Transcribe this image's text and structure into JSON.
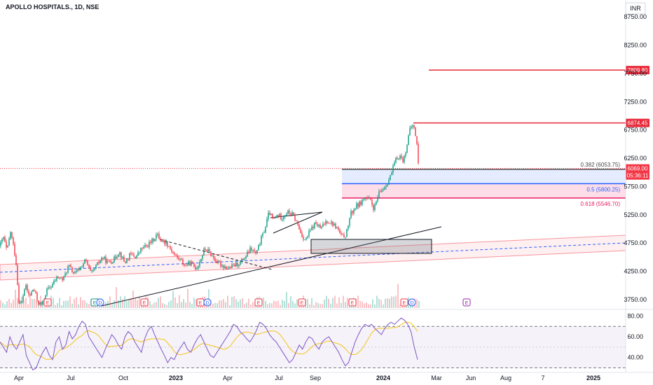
{
  "header": {
    "title": "APOLLO HOSPITALS., 1D, NSE",
    "currency": "INR"
  },
  "chart_data": [
    {
      "type": "line",
      "title": "APOLLO HOSPITALS., 1D, NSE",
      "ylim": [
        3600,
        9050
      ],
      "price_ticks": [
        8750,
        8250,
        7750,
        7250,
        6750,
        6250,
        5750,
        5250,
        4750,
        4250,
        3750
      ],
      "x_ticks": [
        "Apr",
        "Jul",
        "Oct",
        "2023",
        "Apr",
        "Jul",
        "Sep",
        "2024",
        "Mar",
        "Jun",
        "Aug",
        "7",
        "2025"
      ],
      "price_path": [
        [
          0,
          4700
        ],
        [
          5,
          4850
        ],
        [
          10,
          4600
        ],
        [
          15,
          4950
        ],
        [
          20,
          4650
        ],
        [
          24,
          4300
        ],
        [
          26,
          3750
        ],
        [
          30,
          3650
        ],
        [
          36,
          4000
        ],
        [
          42,
          3800
        ],
        [
          48,
          3950
        ],
        [
          54,
          3700
        ],
        [
          60,
          3650
        ],
        [
          66,
          3900
        ],
        [
          74,
          4000
        ],
        [
          82,
          4150
        ],
        [
          90,
          4100
        ],
        [
          98,
          4350
        ],
        [
          106,
          4200
        ],
        [
          114,
          4300
        ],
        [
          122,
          4450
        ],
        [
          130,
          4200
        ],
        [
          138,
          4350
        ],
        [
          146,
          4500
        ],
        [
          154,
          4400
        ],
        [
          162,
          4450
        ],
        [
          170,
          4600
        ],
        [
          178,
          4400
        ],
        [
          186,
          4550
        ],
        [
          194,
          4500
        ],
        [
          202,
          4650
        ],
        [
          210,
          4700
        ],
        [
          218,
          4800
        ],
        [
          224,
          4900
        ],
        [
          230,
          4800
        ],
        [
          238,
          4750
        ],
        [
          246,
          4600
        ],
        [
          252,
          4500
        ],
        [
          258,
          4450
        ],
        [
          264,
          4350
        ],
        [
          272,
          4400
        ],
        [
          280,
          4300
        ],
        [
          286,
          4450
        ],
        [
          292,
          4650
        ],
        [
          298,
          4600
        ],
        [
          304,
          4500
        ],
        [
          310,
          4400
        ],
        [
          318,
          4350
        ],
        [
          326,
          4300
        ],
        [
          334,
          4350
        ],
        [
          342,
          4400
        ],
        [
          350,
          4500
        ],
        [
          358,
          4650
        ],
        [
          366,
          4550
        ],
        [
          372,
          4800
        ],
        [
          378,
          5000
        ],
        [
          384,
          5300
        ],
        [
          390,
          5150
        ],
        [
          396,
          5250
        ],
        [
          402,
          5200
        ],
        [
          410,
          5300
        ],
        [
          418,
          5250
        ],
        [
          424,
          5100
        ],
        [
          430,
          4900
        ],
        [
          436,
          4800
        ],
        [
          442,
          4950
        ],
        [
          450,
          5100
        ],
        [
          458,
          5000
        ],
        [
          466,
          5150
        ],
        [
          474,
          5100
        ],
        [
          482,
          5000
        ],
        [
          488,
          4850
        ],
        [
          494,
          4900
        ],
        [
          500,
          5250
        ],
        [
          508,
          5400
        ],
        [
          514,
          5450
        ],
        [
          520,
          5550
        ],
        [
          528,
          5500
        ],
        [
          534,
          5350
        ],
        [
          540,
          5600
        ],
        [
          546,
          5700
        ],
        [
          552,
          5800
        ],
        [
          558,
          5950
        ],
        [
          564,
          6200
        ],
        [
          570,
          6300
        ],
        [
          576,
          6200
        ],
        [
          580,
          6450
        ],
        [
          584,
          6700
        ],
        [
          588,
          6850
        ],
        [
          592,
          6750
        ],
        [
          596,
          6400
        ],
        [
          598,
          5950
        ]
      ],
      "levels": [
        {
          "label": "7809.80",
          "value": 7809.8,
          "color": "#e8293a",
          "start": 612
        },
        {
          "label": "6874.45",
          "value": 6874.45,
          "color": "#e8293a",
          "start": 590
        }
      ],
      "current_price": {
        "value": "6069.00",
        "countdown": "05:36:11",
        "price": 6069,
        "color": "#f23645"
      },
      "fib": [
        {
          "label": "0.382 (6053.75)",
          "value": 6053.75,
          "color": "#4a4a4a"
        },
        {
          "label": "0.5 (5800.25)",
          "value": 5800.25,
          "color": "#2962ff"
        },
        {
          "label": "0.618 (5546.70)",
          "value": 5546.7,
          "color": "#e91e63"
        }
      ],
      "events": [
        {
          "label": "E",
          "x": 68,
          "color": "#f23645"
        },
        {
          "label": "E",
          "x": 135,
          "color": "#089981"
        },
        {
          "label": "D",
          "x": 143,
          "color": "#2962ff"
        },
        {
          "label": "E",
          "x": 206,
          "color": "#f23645"
        },
        {
          "label": "E",
          "x": 286,
          "color": "#f23645"
        },
        {
          "label": "D",
          "x": 296,
          "color": "#2962ff"
        },
        {
          "label": "E",
          "x": 369,
          "color": "#f23645"
        },
        {
          "label": "E",
          "x": 431,
          "color": "#f23645"
        },
        {
          "label": "E",
          "x": 503,
          "color": "#f23645"
        },
        {
          "label": "E",
          "x": 577,
          "color": "#f23645"
        },
        {
          "label": "D",
          "x": 588,
          "color": "#2962ff"
        },
        {
          "label": "E",
          "x": 666,
          "color": "#9c27b0"
        }
      ]
    },
    {
      "type": "line",
      "title": "",
      "ylim": [
        27,
        85
      ],
      "ticks": [
        80,
        60,
        40
      ],
      "bands": [
        70,
        30
      ],
      "values": [
        55,
        50,
        45,
        60,
        52,
        48,
        55,
        62,
        42,
        35,
        28,
        30,
        38,
        45,
        50,
        42,
        38,
        55,
        60,
        48,
        52,
        65,
        58,
        62,
        70,
        75,
        72,
        60,
        55,
        50,
        45,
        40,
        48,
        55,
        62,
        58,
        52,
        48,
        60,
        65,
        62,
        55,
        50,
        45,
        58,
        66,
        70,
        62,
        55,
        48,
        42,
        35,
        40,
        38,
        45,
        50,
        55,
        48,
        45,
        52,
        58,
        62,
        55,
        48,
        42,
        40,
        45,
        50,
        55,
        60,
        65,
        72,
        70,
        65,
        62,
        58,
        55,
        60,
        66,
        74,
        72,
        68,
        62,
        58,
        55,
        50,
        45,
        40,
        35,
        38,
        45,
        52,
        48,
        55,
        60,
        58,
        52,
        48,
        55,
        58,
        60,
        55,
        50,
        45,
        38,
        32,
        35,
        45,
        55,
        62,
        68,
        72,
        70,
        72,
        68,
        65,
        62,
        68,
        72,
        74,
        72,
        75,
        78,
        76,
        72,
        65,
        50,
        38
      ]
    }
  ]
}
